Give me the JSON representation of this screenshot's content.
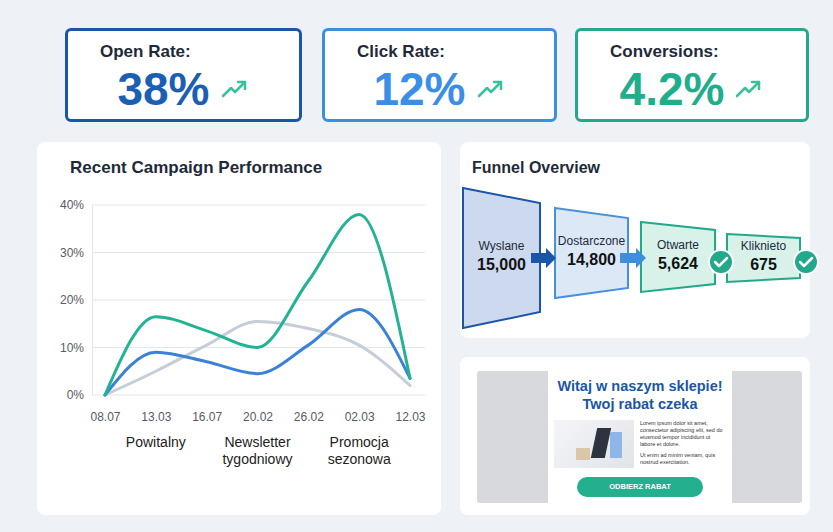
{
  "kpis": [
    {
      "label": "Open Rate:",
      "value": "38%"
    },
    {
      "label": "Click Rate:",
      "value": "12%"
    },
    {
      "label": "Conversions:",
      "value": "4.2%"
    }
  ],
  "chart_data": {
    "type": "line",
    "title": "Recent Campaign Performance",
    "categories": [
      "08.07",
      "13.03",
      "16.07",
      "20.02",
      "26.02",
      "02.03",
      "12.03"
    ],
    "group_labels": [
      "Powitalny",
      "Newsletter tygodniowy",
      "Promocja sezonowa"
    ],
    "series": [
      {
        "color": "#c5cdd9",
        "values": [
          0,
          5,
          10.5,
          15.5,
          14,
          10.5,
          2
        ]
      },
      {
        "color": "#3b82d6",
        "values": [
          0,
          9,
          7,
          4.5,
          10.5,
          18,
          3.5
        ]
      },
      {
        "color": "#22b395",
        "values": [
          0,
          16.5,
          13.5,
          10,
          24,
          38,
          3.5
        ]
      }
    ],
    "ylim": [
      0,
      40
    ],
    "yticks": [
      {
        "value": 0,
        "label": "0%"
      },
      {
        "value": 10,
        "label": "10%"
      },
      {
        "value": 20,
        "label": "20%"
      },
      {
        "value": 30,
        "label": "30%"
      },
      {
        "value": 40,
        "label": "40%"
      }
    ],
    "grid": true
  },
  "funnel": {
    "title": "Funnel Overview",
    "stages": [
      {
        "label": "Wyslane",
        "value": "15,000"
      },
      {
        "label": "Dostarczone",
        "value": "14,800"
      },
      {
        "label": "Otwarte",
        "value": "5,624"
      },
      {
        "label": "Kliknieto",
        "value": "675"
      }
    ]
  },
  "email_preview": {
    "heading": [
      "Witaj w naszym sklepie!",
      "Twoj rabat czeka"
    ],
    "body": [
      "Lorem ipsum dolor sit amet, consectetur adipiscing elit, sed do eiusmod tempor incididunt ut labore et dolore.",
      "Ut enim ad minim veniam, quis nostrud exercitation."
    ],
    "button": "ODBIERZ RABAT"
  }
}
